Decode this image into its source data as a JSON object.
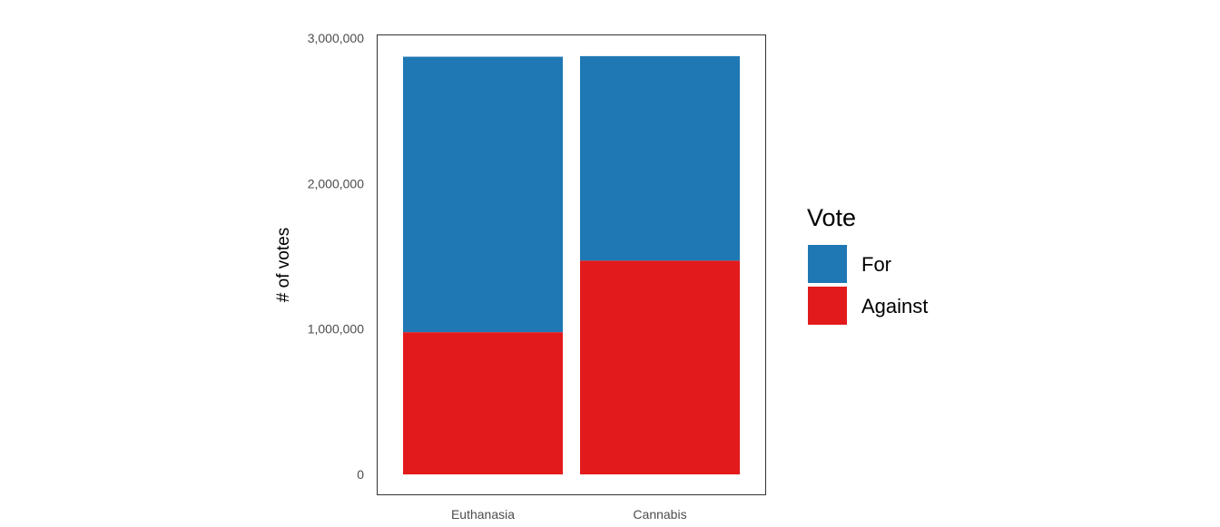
{
  "chart_data": {
    "type": "bar",
    "stacked": true,
    "categories": [
      "Euthanasia",
      "Cannabis"
    ],
    "series": [
      {
        "name": "Against",
        "color": "#e31a1c",
        "values": [
          978000,
          1470000
        ]
      },
      {
        "name": "For",
        "color": "#1f78b4",
        "values": [
          1894000,
          1406000
        ]
      }
    ],
    "title": "",
    "xlabel": "",
    "ylabel": "# of votes",
    "ylim": [
      0,
      3000000
    ],
    "yticks": [
      0,
      1000000,
      2000000,
      3000000
    ],
    "ytick_labels": [
      "0",
      "1,000,000",
      "2,000,000",
      "3,000,000"
    ],
    "grid": false,
    "legend": {
      "title": "Vote",
      "position": "right",
      "entries": [
        {
          "label": "For",
          "color": "#1f78b4"
        },
        {
          "label": "Against",
          "color": "#e31a1c"
        }
      ]
    }
  }
}
